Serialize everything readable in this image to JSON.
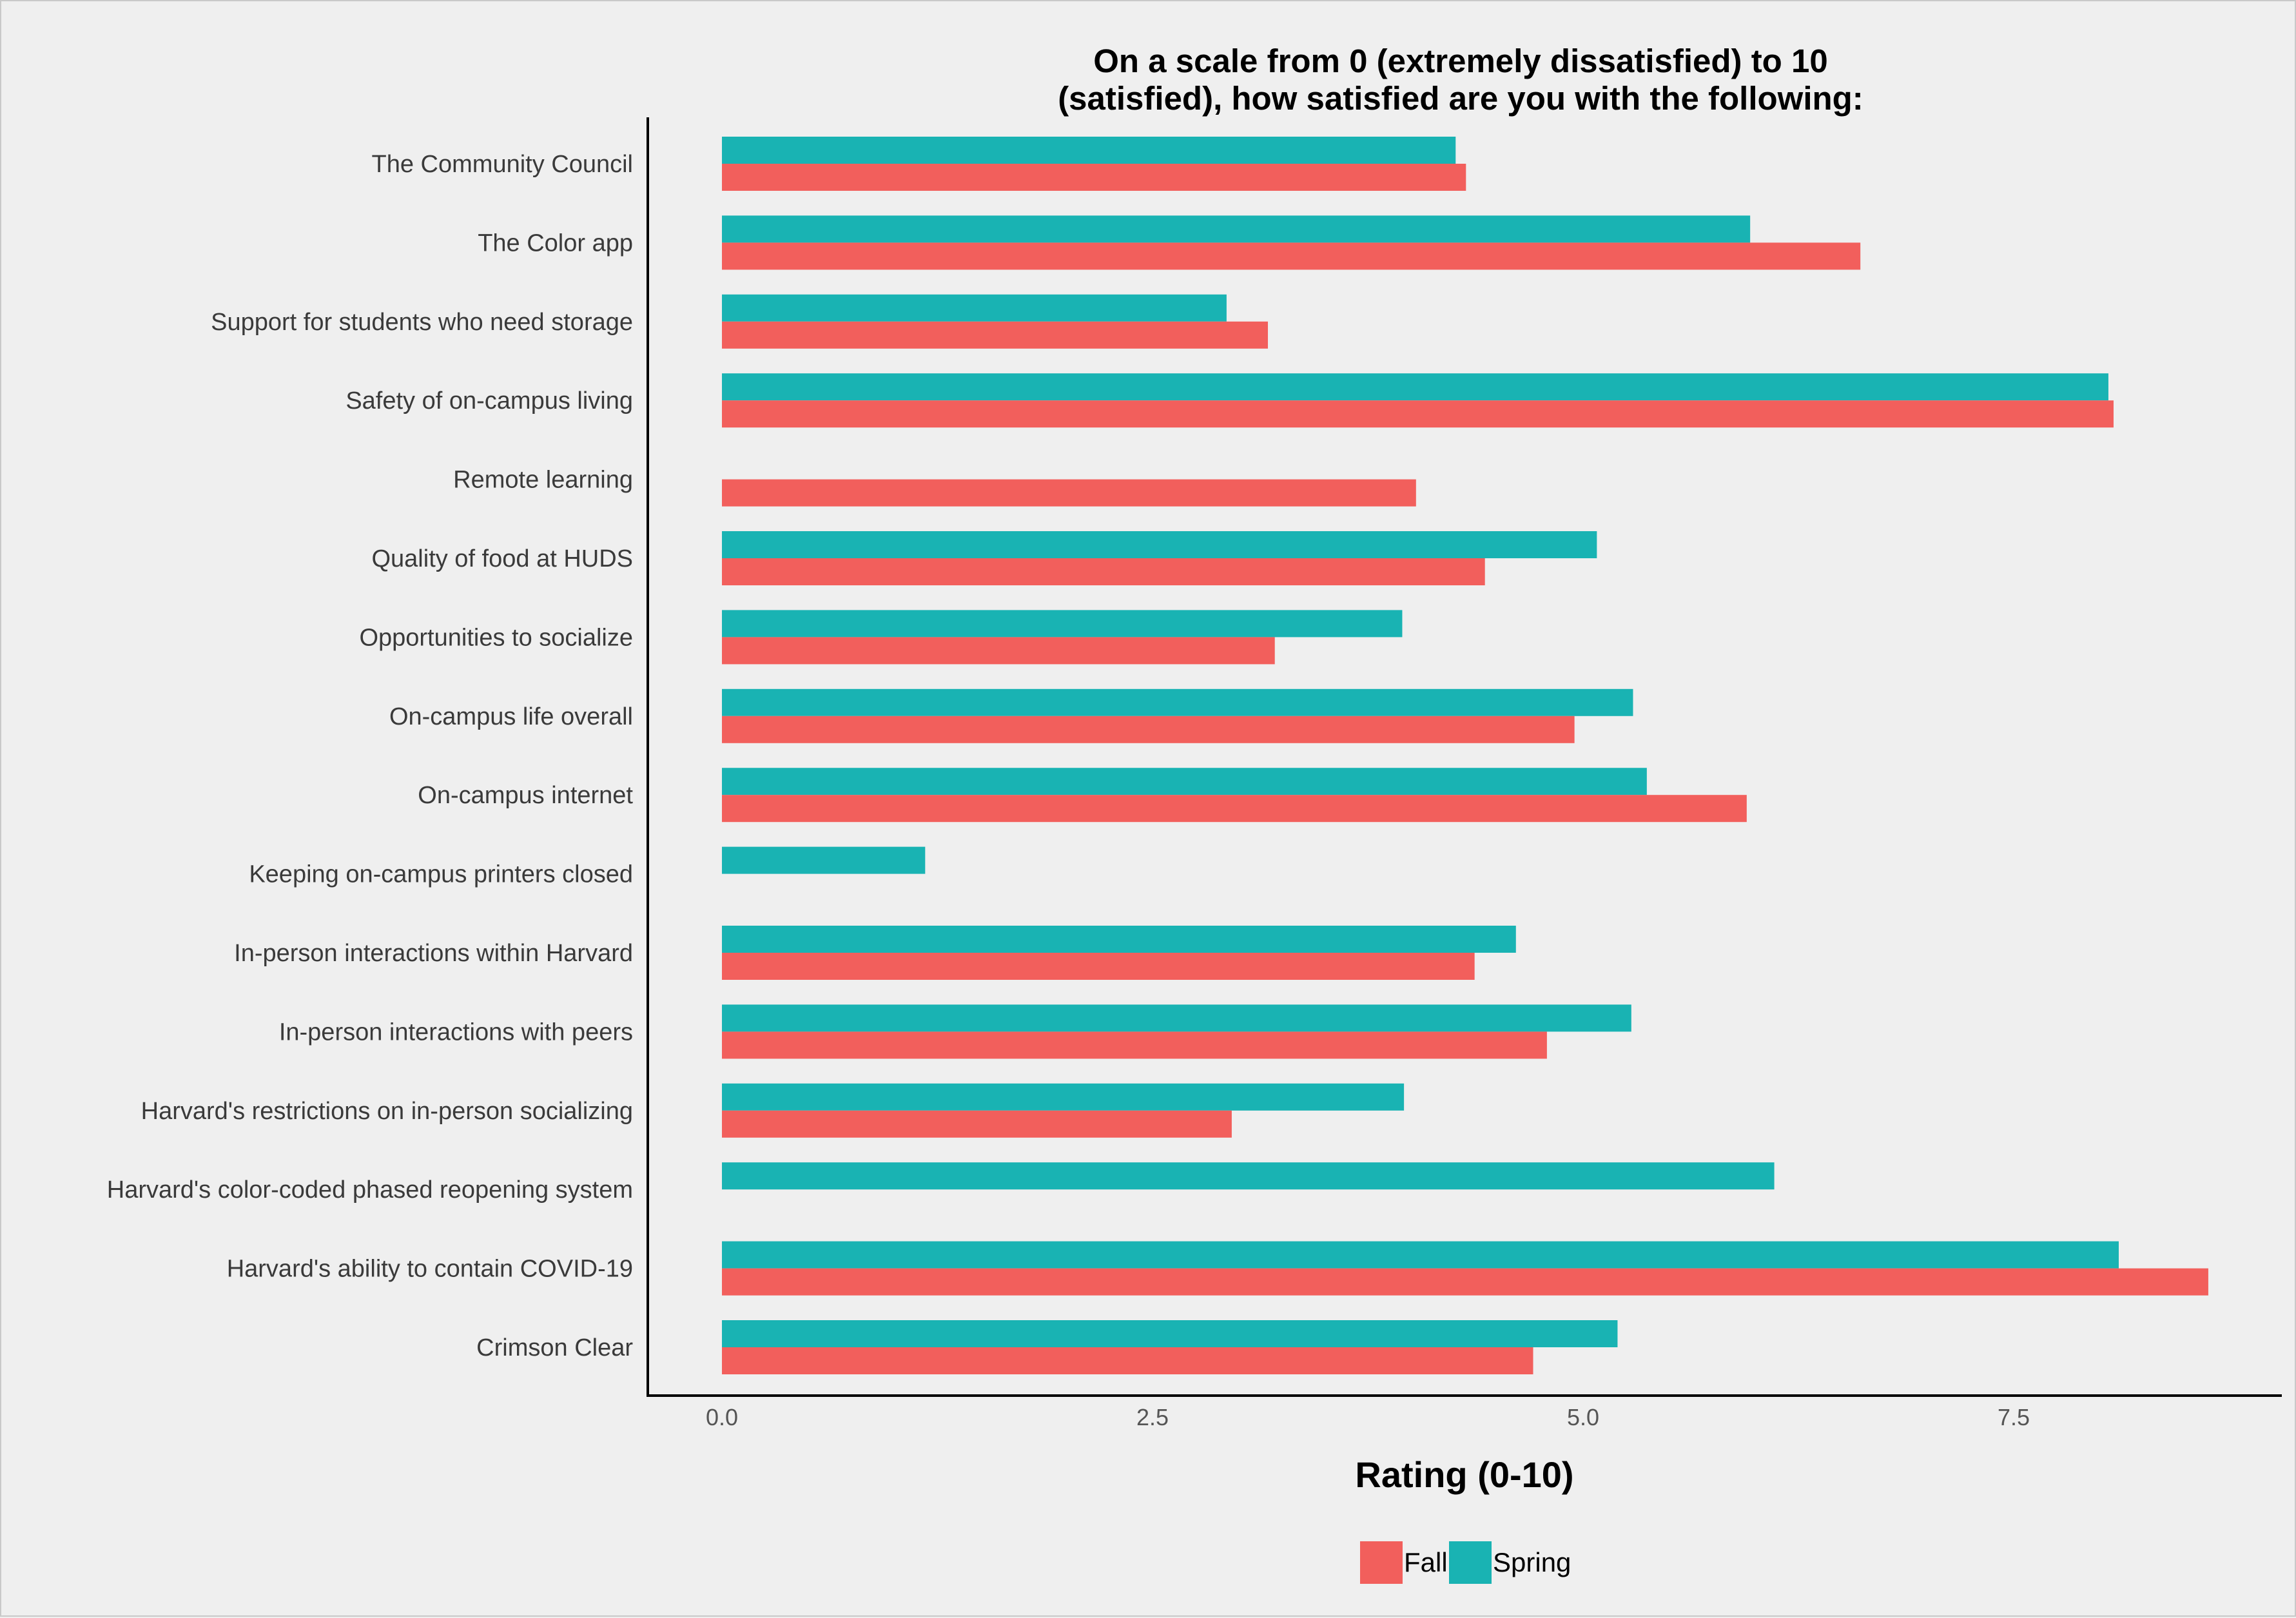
{
  "chart_data": {
    "type": "bar",
    "orientation": "horizontal",
    "title_lines": [
      "On a scale from 0 (extremely dissatisfied) to 10",
      "(satisfied), how satisfied are you with the following:"
    ],
    "xlabel": "Rating (0-10)",
    "ylabel": "",
    "xlim": [
      0,
      8.75
    ],
    "x_ticks": [
      0.0,
      2.5,
      5.0,
      7.5
    ],
    "x_tick_labels": [
      "0.0",
      "2.5",
      "5.0",
      "7.5"
    ],
    "grid": false,
    "legend_position": "bottom",
    "categories": [
      "The Community Council",
      "The Color app",
      "Support for students who need storage",
      "Safety of on-campus living",
      "Remote learning",
      "Quality of food at HUDS",
      "Opportunities to socialize",
      "On-campus life overall",
      "On-campus internet",
      "Keeping on-campus printers closed ",
      "In-person interactions within Harvard",
      "In-person interactions with peers",
      "Harvard's restrictions on in-person socializing",
      "Harvard's color-coded phased reopening system",
      "Harvard's ability to contain COVID-19",
      "Crimson Clear"
    ],
    "series": [
      {
        "name": "Spring",
        "color": "#19b3b3",
        "values": [
          4.26,
          5.97,
          2.93,
          8.05,
          null,
          5.08,
          3.95,
          5.29,
          5.37,
          1.18,
          4.61,
          5.28,
          3.96,
          6.11,
          8.11,
          5.2
        ]
      },
      {
        "name": "Fall",
        "color": "#f25f5c",
        "values": [
          4.32,
          6.61,
          3.17,
          8.08,
          4.03,
          4.43,
          3.21,
          4.95,
          5.95,
          null,
          4.37,
          4.79,
          2.96,
          null,
          8.63,
          4.71
        ]
      }
    ]
  }
}
